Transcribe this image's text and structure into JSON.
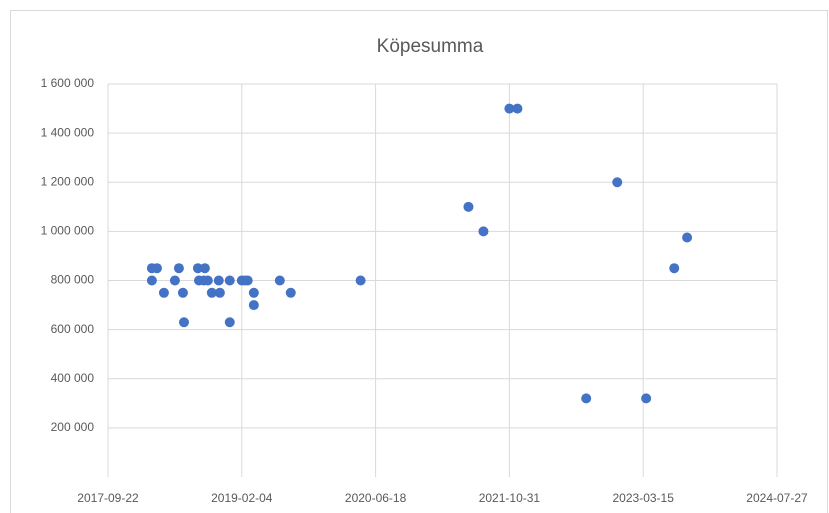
{
  "chart_data": {
    "type": "scatter",
    "title": "Köpesumma",
    "color": "#4472c4",
    "grid": true,
    "x": [
      "2018-03-05",
      "2018-03-24",
      "2018-03-05",
      "2018-04-19",
      "2018-05-30",
      "2018-06-14",
      "2018-06-29",
      "2018-07-03",
      "2018-08-24",
      "2018-09-19",
      "2018-08-28",
      "2018-09-15",
      "2018-09-30",
      "2018-10-15",
      "2018-11-10",
      "2018-11-14",
      "2018-12-21",
      "2018-12-21",
      "2019-02-04",
      "2019-02-26",
      "2019-02-15",
      "2019-03-21",
      "2019-03-21",
      "2019-06-26",
      "2019-08-06",
      "2020-04-23",
      "2021-05-31",
      "2021-07-26",
      "2021-10-31",
      "2021-11-30",
      "2022-08-14",
      "2022-12-08",
      "2023-03-26",
      "2023-07-09",
      "2023-08-26"
    ],
    "values": [
      850000,
      850000,
      800000,
      750000,
      800000,
      850000,
      750000,
      630000,
      850000,
      850000,
      800000,
      800000,
      800000,
      750000,
      800000,
      750000,
      800000,
      630000,
      800000,
      800000,
      800000,
      750000,
      700000,
      800000,
      750000,
      800000,
      1100000,
      1000000,
      1500000,
      1500000,
      320000,
      1200000,
      320000,
      850000,
      975000
    ],
    "xlim": [
      "2017-09-22",
      "2024-07-27"
    ],
    "xticks": [
      "2017-09-22",
      "2019-02-04",
      "2020-06-18",
      "2021-10-31",
      "2023-03-15",
      "2024-07-27"
    ],
    "ylim": [
      0,
      1600000
    ],
    "yticks": [
      {
        "value": 200000,
        "label": "200 000"
      },
      {
        "value": 400000,
        "label": "400 000"
      },
      {
        "value": 600000,
        "label": "600 000"
      },
      {
        "value": 800000,
        "label": "800 000"
      },
      {
        "value": 1000000,
        "label": "1 000 000"
      },
      {
        "value": 1200000,
        "label": "1 200 000"
      },
      {
        "value": 1400000,
        "label": "1 400 000"
      },
      {
        "value": 1600000,
        "label": "1 600 000"
      }
    ]
  }
}
